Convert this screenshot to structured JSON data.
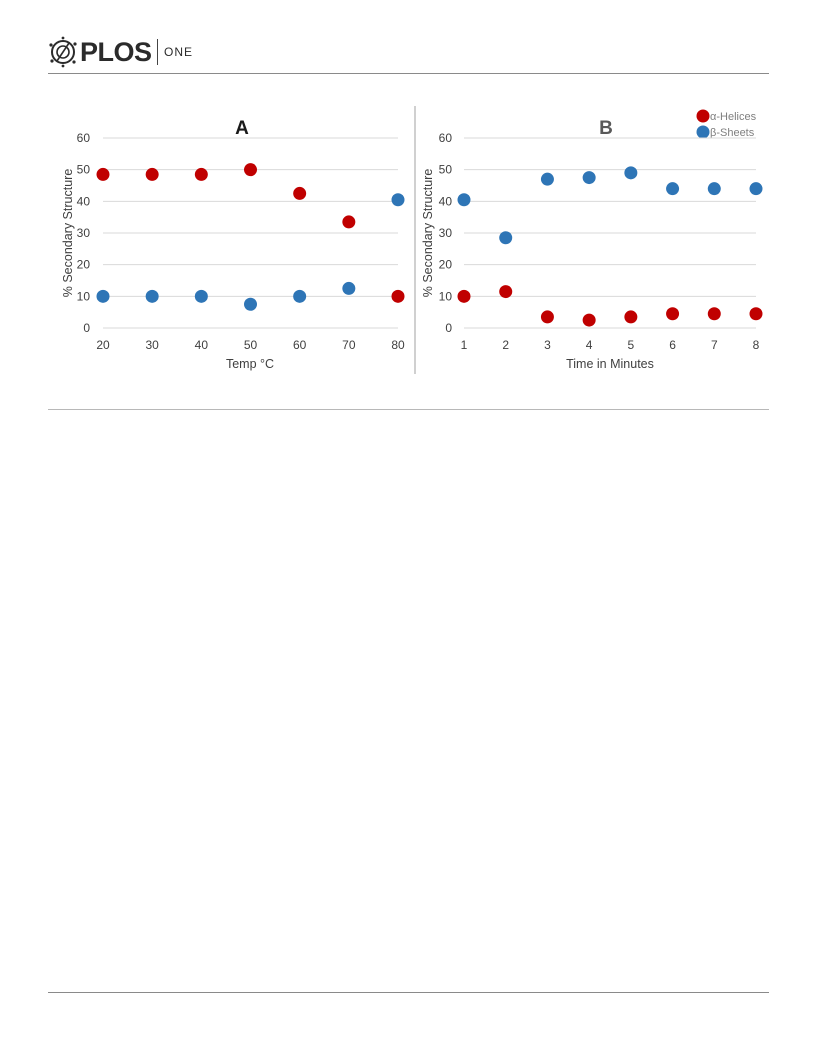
{
  "header": {
    "logo_text": "PLOS",
    "journal": "ONE"
  },
  "colors": {
    "alpha_helices": "#c00000",
    "beta_sheets": "#2e75b6",
    "grid": "#d9d9d9",
    "axis_text": "#404040"
  },
  "legend": {
    "alpha_label": "α-Helices",
    "beta_label": "β-Sheets",
    "placement": "top-right"
  },
  "chart_data": [
    {
      "type": "scatter",
      "title": "A",
      "xlabel": "Temp °C",
      "ylabel": "% Secondary Structure",
      "xlim": [
        20,
        80
      ],
      "ylim": [
        0,
        60
      ],
      "xticks": [
        20,
        30,
        40,
        50,
        60,
        70,
        80
      ],
      "yticks": [
        0,
        10,
        20,
        30,
        40,
        50,
        60
      ],
      "grid": "horizontal",
      "series": [
        {
          "name": "α-Helices",
          "color": "#c00000",
          "x": [
            20,
            30,
            40,
            50,
            60,
            70,
            80
          ],
          "y": [
            48.5,
            48.5,
            48.5,
            50,
            42.5,
            33.5,
            10
          ]
        },
        {
          "name": "β-Sheets",
          "color": "#2e75b6",
          "x": [
            20,
            30,
            40,
            50,
            60,
            70,
            80
          ],
          "y": [
            10,
            10,
            10,
            7.5,
            10,
            12.5,
            40.5
          ]
        }
      ]
    },
    {
      "type": "scatter",
      "title": "B",
      "xlabel": "Time in Minutes",
      "ylabel": "% Secondary Structure",
      "xlim": [
        1,
        8
      ],
      "ylim": [
        0,
        60
      ],
      "xticks": [
        1,
        2,
        3,
        4,
        5,
        6,
        7,
        8
      ],
      "yticks": [
        0,
        10,
        20,
        30,
        40,
        50,
        60
      ],
      "grid": "horizontal",
      "series": [
        {
          "name": "α-Helices",
          "color": "#c00000",
          "x": [
            1,
            2,
            3,
            4,
            5,
            6,
            7,
            8
          ],
          "y": [
            10,
            11.5,
            3.5,
            2.5,
            3.5,
            4.5,
            4.5,
            4.5
          ]
        },
        {
          "name": "β-Sheets",
          "color": "#2e75b6",
          "x": [
            1,
            2,
            3,
            4,
            5,
            6,
            7,
            8
          ],
          "y": [
            40.5,
            28.5,
            47,
            47.5,
            49,
            44,
            44,
            44
          ]
        }
      ]
    }
  ]
}
